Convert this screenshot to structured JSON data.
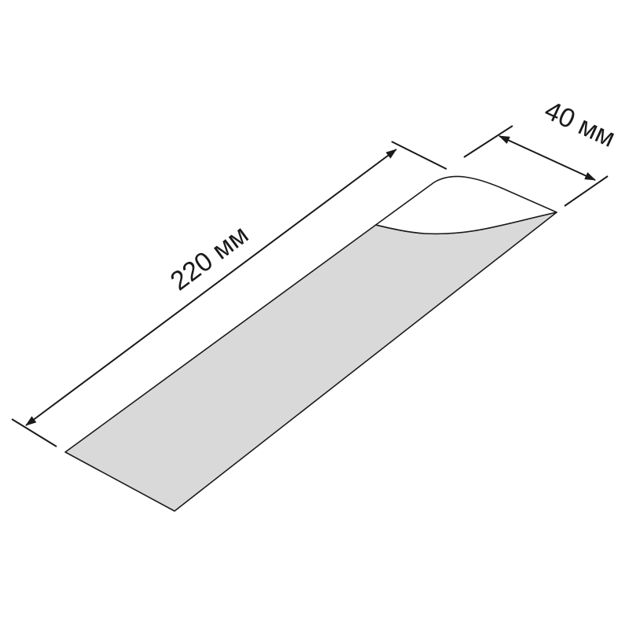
{
  "dimensions": {
    "length_label": "220 мм",
    "width_label": "40 мм"
  },
  "colors": {
    "strip_fill": "#d9d9d9",
    "peeled_fill": "#ffffff",
    "line": "#1a1a1a"
  }
}
